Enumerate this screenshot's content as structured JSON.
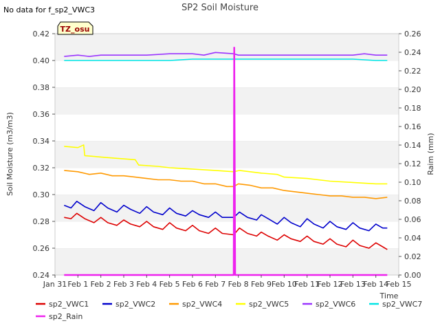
{
  "page": {
    "no_data_note": "No data for f_sp2_VWC3",
    "tz_badge": "TZ_osu"
  },
  "chart_data": {
    "type": "line",
    "title": "SP2 Soil Moisture",
    "xlabel": "Time",
    "ylabel": "Soil Moisture (m3/m3)",
    "y2label": "Raim (mm)",
    "ylim": [
      0.24,
      0.42
    ],
    "y2lim": [
      0.0,
      0.26
    ],
    "xlim": [
      0,
      15
    ],
    "yticks": [
      "0.24",
      "0.26",
      "0.28",
      "0.30",
      "0.32",
      "0.34",
      "0.36",
      "0.38",
      "0.40",
      "0.42"
    ],
    "y2ticks": [
      "0.00",
      "0.02",
      "0.04",
      "0.06",
      "0.08",
      "0.10",
      "0.12",
      "0.14",
      "0.16",
      "0.18",
      "0.20",
      "0.22",
      "0.24",
      "0.26"
    ],
    "xticks": [
      {
        "x": 0,
        "label": "Jan 31"
      },
      {
        "x": 1,
        "label": "Feb 1"
      },
      {
        "x": 2,
        "label": "Feb 2"
      },
      {
        "x": 3,
        "label": "Feb 3"
      },
      {
        "x": 4,
        "label": "Feb 4"
      },
      {
        "x": 5,
        "label": "Feb 5"
      },
      {
        "x": 6,
        "label": "Feb 6"
      },
      {
        "x": 7,
        "label": "Feb 7"
      },
      {
        "x": 8,
        "label": "Feb 8"
      },
      {
        "x": 9,
        "label": "Feb 9"
      },
      {
        "x": 10,
        "label": "Feb 10"
      },
      {
        "x": 11,
        "label": "Feb 11"
      },
      {
        "x": 12,
        "label": "Feb 12"
      },
      {
        "x": 13,
        "label": "Feb 13"
      },
      {
        "x": 14,
        "label": "Feb 14"
      },
      {
        "x": 15,
        "label": "Feb 15"
      }
    ],
    "x_units_note": "x values are days since Jan 31 00:00",
    "grid": "horizontal bands",
    "legend": "bottom",
    "series": [
      {
        "name": "sp2_VWC1",
        "color": "#dd0000",
        "axis": "left",
        "points": [
          [
            0.4,
            0.283
          ],
          [
            0.7,
            0.282
          ],
          [
            0.95,
            0.286
          ],
          [
            1.3,
            0.282
          ],
          [
            1.7,
            0.279
          ],
          [
            2.0,
            0.283
          ],
          [
            2.3,
            0.279
          ],
          [
            2.7,
            0.277
          ],
          [
            3.0,
            0.281
          ],
          [
            3.3,
            0.278
          ],
          [
            3.7,
            0.276
          ],
          [
            4.0,
            0.28
          ],
          [
            4.3,
            0.276
          ],
          [
            4.7,
            0.274
          ],
          [
            5.0,
            0.279
          ],
          [
            5.3,
            0.275
          ],
          [
            5.7,
            0.273
          ],
          [
            6.0,
            0.277
          ],
          [
            6.3,
            0.273
          ],
          [
            6.7,
            0.271
          ],
          [
            7.0,
            0.275
          ],
          [
            7.3,
            0.271
          ],
          [
            7.8,
            0.27
          ],
          [
            8.05,
            0.275
          ],
          [
            8.4,
            0.271
          ],
          [
            8.8,
            0.269
          ],
          [
            9.0,
            0.272
          ],
          [
            9.3,
            0.269
          ],
          [
            9.7,
            0.266
          ],
          [
            10.0,
            0.27
          ],
          [
            10.3,
            0.267
          ],
          [
            10.7,
            0.265
          ],
          [
            11.0,
            0.269
          ],
          [
            11.3,
            0.265
          ],
          [
            11.7,
            0.263
          ],
          [
            12.0,
            0.267
          ],
          [
            12.3,
            0.263
          ],
          [
            12.7,
            0.261
          ],
          [
            13.0,
            0.266
          ],
          [
            13.3,
            0.262
          ],
          [
            13.7,
            0.26
          ],
          [
            14.0,
            0.264
          ],
          [
            14.3,
            0.261
          ],
          [
            14.5,
            0.259
          ]
        ]
      },
      {
        "name": "sp2_VWC2",
        "color": "#0000cc",
        "axis": "left",
        "points": [
          [
            0.4,
            0.292
          ],
          [
            0.7,
            0.29
          ],
          [
            0.95,
            0.295
          ],
          [
            1.3,
            0.291
          ],
          [
            1.7,
            0.288
          ],
          [
            2.0,
            0.294
          ],
          [
            2.3,
            0.29
          ],
          [
            2.7,
            0.287
          ],
          [
            3.0,
            0.292
          ],
          [
            3.3,
            0.289
          ],
          [
            3.7,
            0.286
          ],
          [
            4.0,
            0.291
          ],
          [
            4.3,
            0.287
          ],
          [
            4.7,
            0.285
          ],
          [
            5.0,
            0.29
          ],
          [
            5.3,
            0.286
          ],
          [
            5.7,
            0.284
          ],
          [
            6.0,
            0.288
          ],
          [
            6.3,
            0.285
          ],
          [
            6.7,
            0.283
          ],
          [
            7.0,
            0.287
          ],
          [
            7.3,
            0.283
          ],
          [
            7.8,
            0.283
          ],
          [
            8.05,
            0.287
          ],
          [
            8.4,
            0.283
          ],
          [
            8.8,
            0.281
          ],
          [
            9.0,
            0.285
          ],
          [
            9.3,
            0.282
          ],
          [
            9.7,
            0.278
          ],
          [
            10.0,
            0.283
          ],
          [
            10.3,
            0.279
          ],
          [
            10.7,
            0.276
          ],
          [
            11.0,
            0.282
          ],
          [
            11.3,
            0.278
          ],
          [
            11.7,
            0.275
          ],
          [
            12.0,
            0.28
          ],
          [
            12.3,
            0.276
          ],
          [
            12.7,
            0.274
          ],
          [
            13.0,
            0.279
          ],
          [
            13.3,
            0.275
          ],
          [
            13.7,
            0.273
          ],
          [
            14.0,
            0.278
          ],
          [
            14.3,
            0.275
          ],
          [
            14.5,
            0.275
          ]
        ]
      },
      {
        "name": "sp2_VWC4",
        "color": "#ff9900",
        "axis": "left",
        "points": [
          [
            0.4,
            0.318
          ],
          [
            1.0,
            0.317
          ],
          [
            1.5,
            0.315
          ],
          [
            2.0,
            0.316
          ],
          [
            2.5,
            0.314
          ],
          [
            3.0,
            0.314
          ],
          [
            3.5,
            0.313
          ],
          [
            4.0,
            0.312
          ],
          [
            4.5,
            0.311
          ],
          [
            5.0,
            0.311
          ],
          [
            5.5,
            0.31
          ],
          [
            6.0,
            0.31
          ],
          [
            6.5,
            0.308
          ],
          [
            7.0,
            0.308
          ],
          [
            7.5,
            0.306
          ],
          [
            7.8,
            0.306
          ],
          [
            8.0,
            0.308
          ],
          [
            8.5,
            0.307
          ],
          [
            9.0,
            0.305
          ],
          [
            9.5,
            0.305
          ],
          [
            10.0,
            0.303
          ],
          [
            10.5,
            0.302
          ],
          [
            11.0,
            0.301
          ],
          [
            11.5,
            0.3
          ],
          [
            12.0,
            0.299
          ],
          [
            12.5,
            0.299
          ],
          [
            13.0,
            0.298
          ],
          [
            13.5,
            0.298
          ],
          [
            14.0,
            0.297
          ],
          [
            14.5,
            0.298
          ]
        ]
      },
      {
        "name": "sp2_VWC5",
        "color": "#ffff00",
        "axis": "left",
        "points": [
          [
            0.4,
            0.336
          ],
          [
            1.0,
            0.335
          ],
          [
            1.25,
            0.337
          ],
          [
            1.3,
            0.329
          ],
          [
            2.0,
            0.328
          ],
          [
            2.7,
            0.327
          ],
          [
            3.5,
            0.326
          ],
          [
            3.65,
            0.322
          ],
          [
            4.5,
            0.321
          ],
          [
            5.0,
            0.32
          ],
          [
            6.0,
            0.319
          ],
          [
            7.0,
            0.318
          ],
          [
            7.8,
            0.317
          ],
          [
            8.05,
            0.318
          ],
          [
            9.0,
            0.316
          ],
          [
            9.7,
            0.315
          ],
          [
            10.0,
            0.313
          ],
          [
            11.0,
            0.312
          ],
          [
            12.0,
            0.31
          ],
          [
            13.0,
            0.309
          ],
          [
            14.0,
            0.308
          ],
          [
            14.5,
            0.308
          ]
        ]
      },
      {
        "name": "sp2_VWC6",
        "color": "#9933ff",
        "axis": "left",
        "points": [
          [
            0.4,
            0.403
          ],
          [
            1.0,
            0.404
          ],
          [
            1.5,
            0.403
          ],
          [
            2.0,
            0.404
          ],
          [
            3.0,
            0.404
          ],
          [
            4.0,
            0.404
          ],
          [
            5.0,
            0.405
          ],
          [
            6.0,
            0.405
          ],
          [
            6.5,
            0.404
          ],
          [
            7.0,
            0.406
          ],
          [
            7.8,
            0.405
          ],
          [
            8.0,
            0.404
          ],
          [
            9.0,
            0.404
          ],
          [
            10.0,
            0.404
          ],
          [
            11.0,
            0.404
          ],
          [
            12.0,
            0.404
          ],
          [
            13.0,
            0.404
          ],
          [
            13.5,
            0.405
          ],
          [
            14.0,
            0.404
          ],
          [
            14.5,
            0.404
          ]
        ]
      },
      {
        "name": "sp2_VWC7",
        "color": "#00e5e5",
        "axis": "left",
        "points": [
          [
            0.4,
            0.4
          ],
          [
            1.0,
            0.4
          ],
          [
            2.0,
            0.4
          ],
          [
            3.0,
            0.4
          ],
          [
            4.0,
            0.4
          ],
          [
            5.0,
            0.4
          ],
          [
            6.0,
            0.401
          ],
          [
            7.0,
            0.401
          ],
          [
            8.0,
            0.401
          ],
          [
            9.0,
            0.401
          ],
          [
            10.0,
            0.401
          ],
          [
            11.0,
            0.401
          ],
          [
            12.0,
            0.401
          ],
          [
            13.0,
            0.401
          ],
          [
            14.0,
            0.4
          ],
          [
            14.5,
            0.4
          ]
        ]
      },
      {
        "name": "sp2_Rain",
        "color": "#ee22ee",
        "axis": "right",
        "points": [
          [
            0.4,
            0.0
          ],
          [
            7.8,
            0.0
          ],
          [
            7.82,
            0.245
          ],
          [
            7.86,
            0.0
          ],
          [
            14.5,
            0.0
          ]
        ]
      }
    ]
  }
}
